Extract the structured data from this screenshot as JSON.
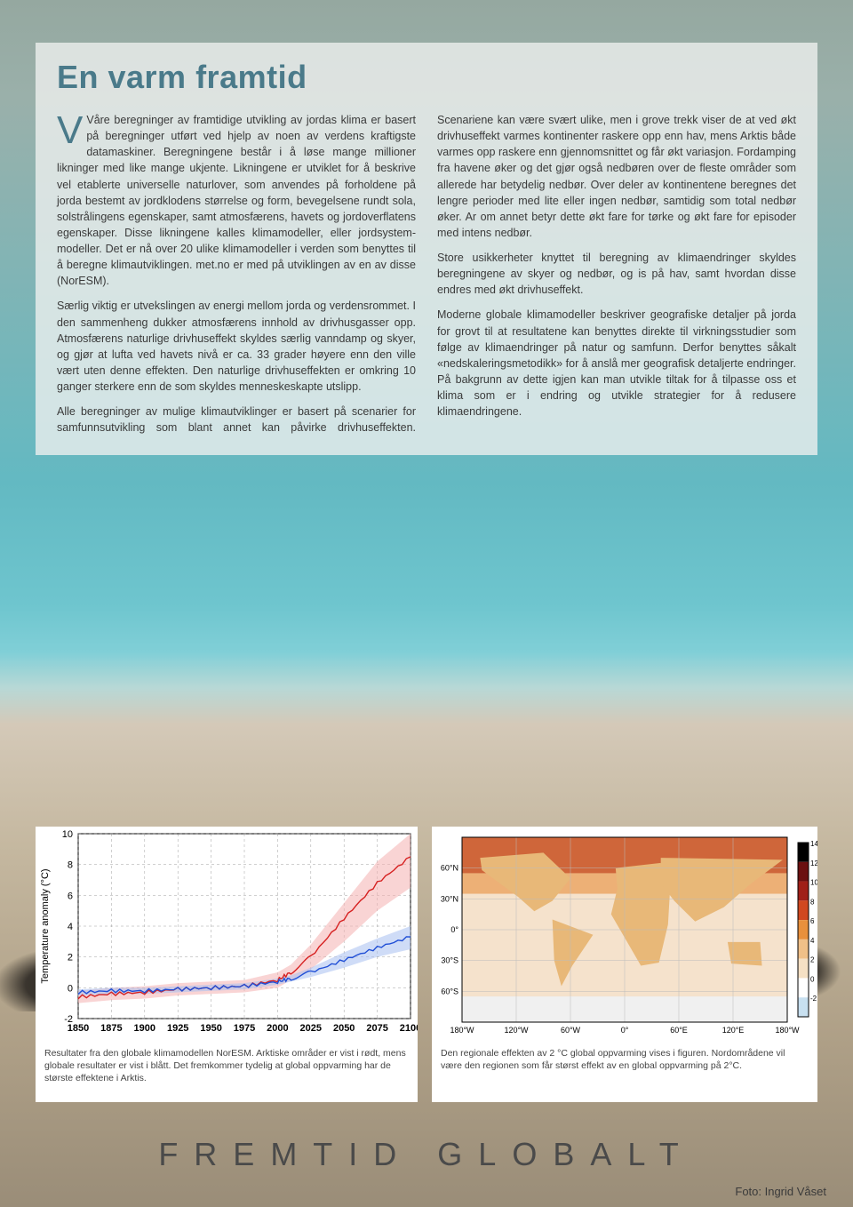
{
  "title": "En varm framtid",
  "dropcap": "V",
  "paragraphs": [
    "Våre beregninger av framtidige utvikling av jordas klima er basert på beregninger utført ved hjelp av noen av verdens kraftigste datamaskiner. Beregningene består i å løse mange millioner likninger med like mange ukjente. Likningene er utviklet for å beskrive vel etablerte universelle naturlover, som anvendes på forholdene på jorda bestemt av jordklodens størrelse og form, bevegelsene rundt sola, solstrålingens egenskaper, samt atmosfærens, havets og jordoverflatens egenskaper. Disse likningene kalles klimamodeller, eller jordsystem-modeller. Det er nå over 20 ulike klimamodeller i verden som benyttes til å beregne klimautviklingen. met.no er med på utviklingen av en av disse (NorESM).",
    "Særlig viktig er utvekslingen av energi mellom jorda og verdensrommet. I den sammenheng dukker atmosfærens innhold av drivhusgasser opp. Atmosfærens naturlige drivhuseffekt skyldes særlig vanndamp og skyer, og gjør at lufta ved havets nivå er ca. 33 grader høyere enn den ville vært uten denne effekten. Den naturlige drivhuseffekten er omkring 10 ganger sterkere enn de som skyldes menneskeskapte utslipp.",
    "Alle beregninger av mulige klimautviklinger er basert på scenarier for samfunnsutvikling som blant annet kan påvirke drivhuseffekten. Scenariene kan være svært ulike, men i grove trekk viser de at ved økt drivhuseffekt varmes kontinenter raskere opp enn hav, mens Arktis både varmes opp raskere enn gjennomsnittet og får økt variasjon. Fordamping fra havene øker og det gjør også nedbøren over de fleste områder som allerede har betydelig nedbør. Over deler av kontinentene beregnes det lengre perioder med lite eller ingen nedbør, samtidig som total nedbør øker. Ar om annet betyr dette økt fare for tørke og økt fare for episoder med intens nedbør.",
    "Store usikkerheter knyttet til beregning av klimaendringer skyldes beregningene av skyer og nedbør, og is på hav, samt hvordan disse endres med økt drivhuseffekt.",
    "Moderne globale klimamodeller beskriver geografiske detaljer på jorda for grovt til at resultatene kan benyttes direkte til virkningsstudier som følge av klimaendringer på natur og samfunn. Derfor benyttes såkalt «nedskaleringsmetodikk» for å anslå mer geografisk detaljerte endringer. På bakgrunn av dette igjen kan man utvikle tiltak for å tilpasse oss et klima som er i endring og utvikle strategier for å redusere klimaendringene."
  ],
  "chart": {
    "type": "line",
    "ylabel": "Temperature anomaly (°C)",
    "xlim": [
      1850,
      2100
    ],
    "ylim": [
      -2,
      10
    ],
    "xticks": [
      1850,
      1875,
      1900,
      1925,
      1950,
      1975,
      2000,
      2025,
      2050,
      2075,
      2100
    ],
    "yticks": [
      -2,
      0,
      2,
      4,
      6,
      8,
      10
    ],
    "grid_color": "#888888",
    "background_color": "#ffffff",
    "series": [
      {
        "name": "arctic",
        "color": "#d62020",
        "fill_color": "#f4b0b0",
        "fill_opacity": 0.55,
        "x": [
          1850,
          1875,
          1900,
          1925,
          1950,
          1975,
          2000,
          2010,
          2025,
          2050,
          2075,
          2100
        ],
        "y": [
          -0.6,
          -0.4,
          -0.3,
          -0.1,
          0.0,
          0.1,
          0.5,
          1.0,
          2.0,
          4.5,
          6.8,
          8.5
        ],
        "y_lo": [
          -1.0,
          -0.8,
          -0.7,
          -0.5,
          -0.4,
          -0.3,
          0.0,
          0.5,
          1.2,
          3.0,
          5.0,
          6.5
        ],
        "y_hi": [
          -0.2,
          0.0,
          0.1,
          0.3,
          0.4,
          0.5,
          1.0,
          1.5,
          2.8,
          5.5,
          8.2,
          10.0
        ]
      },
      {
        "name": "global",
        "color": "#204fd6",
        "fill_color": "#a8c0f0",
        "fill_opacity": 0.55,
        "x": [
          1850,
          1875,
          1900,
          1925,
          1950,
          1975,
          2000,
          2010,
          2025,
          2050,
          2075,
          2100
        ],
        "y": [
          -0.3,
          -0.2,
          -0.2,
          -0.1,
          0.0,
          0.1,
          0.4,
          0.6,
          1.0,
          1.8,
          2.6,
          3.3
        ],
        "y_lo": [
          -0.5,
          -0.4,
          -0.4,
          -0.3,
          -0.2,
          -0.1,
          0.2,
          0.4,
          0.7,
          1.3,
          2.0,
          2.5
        ],
        "y_hi": [
          -0.1,
          0.0,
          0.0,
          0.1,
          0.2,
          0.3,
          0.6,
          0.8,
          1.3,
          2.3,
          3.2,
          4.0
        ]
      }
    ],
    "tick_fontsize": 11,
    "label_fontsize": 11
  },
  "map": {
    "type": "heatmap",
    "lat_ticks": [
      "60°N",
      "30°N",
      "0°",
      "30°S",
      "60°S"
    ],
    "lon_ticks": [
      "180°W",
      "120°W",
      "60°W",
      "0°",
      "60°E",
      "120°E",
      "180°W"
    ],
    "colorbar": {
      "values": [
        14,
        12,
        10,
        8,
        6,
        4,
        2,
        0,
        -2
      ],
      "colors": [
        "#000000",
        "#6b1010",
        "#a02018",
        "#d04820",
        "#e8903c",
        "#f0c088",
        "#f5e0c4",
        "#ffffff",
        "#c8e0f0"
      ]
    },
    "land_color": "#e8b878",
    "ocean_color": "#f5e2cc",
    "arctic_color": "#c85020",
    "grid_color": "#bbbbbb",
    "tick_fontsize": 9
  },
  "caption_left": "Resultater fra den globale klimamodellen NorESM. Arktiske områder er vist i rødt, mens globale resultater er vist i blått. Det fremkommer tydelig at global oppvarming har de største effektene i Arktis.",
  "caption_right": "Den regionale effekten av 2 °C global oppvarming vises i figuren. Nordområdene vil være den regionen som får størst effekt av en global oppvarming på 2°C.",
  "footer_title": "FREMTID GLOBALT",
  "photo_credit": "Foto: Ingrid Våset"
}
